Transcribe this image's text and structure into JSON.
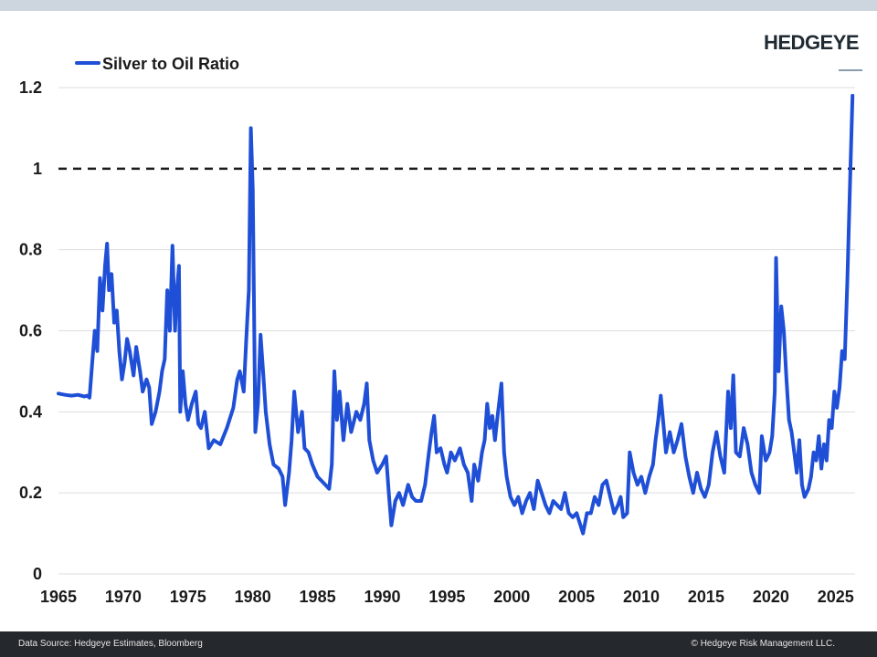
{
  "brand": {
    "logo_text": "HEDGEYE"
  },
  "footer": {
    "source": "Data Source: Hedgeye Estimates, Bloomberg",
    "copyright": "© Hedgeye Risk Management LLC."
  },
  "colors": {
    "series": "#1f4fd6",
    "reference": "#1a1a1a",
    "grid": "#dddddd",
    "top_bar": "#cdd6de",
    "footer_bg": "#25282c"
  },
  "chart_data": {
    "type": "line",
    "title": "",
    "xlabel": "",
    "ylabel": "",
    "xlim": [
      1965,
      2026.5
    ],
    "ylim": [
      0,
      1.2
    ],
    "x_ticks": [
      1965,
      1970,
      1975,
      1980,
      1985,
      1990,
      1995,
      2000,
      2005,
      2010,
      2015,
      2020,
      2025
    ],
    "y_ticks": [
      0,
      0.2,
      0.4,
      0.6,
      0.8,
      1,
      1.2
    ],
    "y_tick_labels": [
      "0",
      "0.2",
      "0.4",
      "0.6",
      "0.8",
      "1",
      "1.2"
    ],
    "grid": "horizontal",
    "legend": {
      "position": "top-left"
    },
    "reference_line": {
      "y": 1,
      "style": "dashed"
    },
    "series": [
      {
        "name": "Silver to Oil Ratio",
        "points": [
          [
            1965.0,
            0.445
          ],
          [
            1965.5,
            0.442
          ],
          [
            1966.0,
            0.44
          ],
          [
            1966.5,
            0.442
          ],
          [
            1967.0,
            0.438
          ],
          [
            1967.2,
            0.44
          ],
          [
            1967.4,
            0.435
          ],
          [
            1967.6,
            0.52
          ],
          [
            1967.8,
            0.6
          ],
          [
            1968.0,
            0.55
          ],
          [
            1968.2,
            0.73
          ],
          [
            1968.4,
            0.65
          ],
          [
            1968.6,
            0.76
          ],
          [
            1968.75,
            0.815
          ],
          [
            1968.9,
            0.7
          ],
          [
            1969.1,
            0.74
          ],
          [
            1969.3,
            0.62
          ],
          [
            1969.5,
            0.65
          ],
          [
            1969.7,
            0.55
          ],
          [
            1969.9,
            0.48
          ],
          [
            1970.1,
            0.52
          ],
          [
            1970.3,
            0.58
          ],
          [
            1970.5,
            0.55
          ],
          [
            1970.8,
            0.49
          ],
          [
            1971.0,
            0.56
          ],
          [
            1971.3,
            0.5
          ],
          [
            1971.5,
            0.45
          ],
          [
            1971.8,
            0.48
          ],
          [
            1972.0,
            0.46
          ],
          [
            1972.2,
            0.37
          ],
          [
            1972.5,
            0.4
          ],
          [
            1972.8,
            0.45
          ],
          [
            1973.0,
            0.5
          ],
          [
            1973.2,
            0.53
          ],
          [
            1973.4,
            0.7
          ],
          [
            1973.6,
            0.6
          ],
          [
            1973.8,
            0.81
          ],
          [
            1974.0,
            0.6
          ],
          [
            1974.15,
            0.7
          ],
          [
            1974.3,
            0.76
          ],
          [
            1974.4,
            0.4
          ],
          [
            1974.6,
            0.5
          ],
          [
            1974.8,
            0.42
          ],
          [
            1975.0,
            0.38
          ],
          [
            1975.3,
            0.42
          ],
          [
            1975.6,
            0.45
          ],
          [
            1975.8,
            0.37
          ],
          [
            1976.0,
            0.36
          ],
          [
            1976.3,
            0.4
          ],
          [
            1976.6,
            0.31
          ],
          [
            1977.0,
            0.33
          ],
          [
            1977.5,
            0.32
          ],
          [
            1978.0,
            0.36
          ],
          [
            1978.5,
            0.41
          ],
          [
            1978.8,
            0.48
          ],
          [
            1979.0,
            0.5
          ],
          [
            1979.3,
            0.45
          ],
          [
            1979.5,
            0.58
          ],
          [
            1979.7,
            0.7
          ],
          [
            1979.85,
            1.1
          ],
          [
            1980.0,
            0.95
          ],
          [
            1980.2,
            0.35
          ],
          [
            1980.4,
            0.42
          ],
          [
            1980.6,
            0.59
          ],
          [
            1980.8,
            0.5
          ],
          [
            1981.0,
            0.4
          ],
          [
            1981.3,
            0.32
          ],
          [
            1981.6,
            0.27
          ],
          [
            1982.0,
            0.26
          ],
          [
            1982.3,
            0.24
          ],
          [
            1982.5,
            0.17
          ],
          [
            1982.8,
            0.25
          ],
          [
            1983.0,
            0.33
          ],
          [
            1983.2,
            0.45
          ],
          [
            1983.5,
            0.35
          ],
          [
            1983.8,
            0.4
          ],
          [
            1984.0,
            0.31
          ],
          [
            1984.3,
            0.3
          ],
          [
            1984.6,
            0.27
          ],
          [
            1985.0,
            0.24
          ],
          [
            1985.3,
            0.23
          ],
          [
            1985.6,
            0.22
          ],
          [
            1985.9,
            0.21
          ],
          [
            1986.1,
            0.27
          ],
          [
            1986.3,
            0.5
          ],
          [
            1986.5,
            0.38
          ],
          [
            1986.7,
            0.45
          ],
          [
            1986.9,
            0.37
          ],
          [
            1987.0,
            0.33
          ],
          [
            1987.3,
            0.42
          ],
          [
            1987.6,
            0.35
          ],
          [
            1988.0,
            0.4
          ],
          [
            1988.3,
            0.38
          ],
          [
            1988.6,
            0.42
          ],
          [
            1988.8,
            0.47
          ],
          [
            1989.0,
            0.33
          ],
          [
            1989.3,
            0.28
          ],
          [
            1989.6,
            0.25
          ],
          [
            1990.0,
            0.27
          ],
          [
            1990.3,
            0.29
          ],
          [
            1990.5,
            0.2
          ],
          [
            1990.7,
            0.12
          ],
          [
            1991.0,
            0.18
          ],
          [
            1991.3,
            0.2
          ],
          [
            1991.6,
            0.17
          ],
          [
            1992.0,
            0.22
          ],
          [
            1992.3,
            0.19
          ],
          [
            1992.6,
            0.18
          ],
          [
            1993.0,
            0.18
          ],
          [
            1993.3,
            0.22
          ],
          [
            1993.6,
            0.3
          ],
          [
            1993.8,
            0.35
          ],
          [
            1994.0,
            0.39
          ],
          [
            1994.2,
            0.3
          ],
          [
            1994.5,
            0.31
          ],
          [
            1994.8,
            0.27
          ],
          [
            1995.0,
            0.25
          ],
          [
            1995.3,
            0.3
          ],
          [
            1995.6,
            0.28
          ],
          [
            1996.0,
            0.31
          ],
          [
            1996.3,
            0.27
          ],
          [
            1996.6,
            0.25
          ],
          [
            1996.9,
            0.18
          ],
          [
            1997.1,
            0.27
          ],
          [
            1997.4,
            0.23
          ],
          [
            1997.7,
            0.3
          ],
          [
            1997.9,
            0.33
          ],
          [
            1998.1,
            0.42
          ],
          [
            1998.3,
            0.36
          ],
          [
            1998.5,
            0.39
          ],
          [
            1998.7,
            0.33
          ],
          [
            1998.9,
            0.39
          ],
          [
            1999.2,
            0.47
          ],
          [
            1999.4,
            0.3
          ],
          [
            1999.6,
            0.24
          ],
          [
            1999.9,
            0.19
          ],
          [
            2000.2,
            0.17
          ],
          [
            2000.5,
            0.19
          ],
          [
            2000.8,
            0.15
          ],
          [
            2001.1,
            0.18
          ],
          [
            2001.4,
            0.2
          ],
          [
            2001.7,
            0.16
          ],
          [
            2002.0,
            0.23
          ],
          [
            2002.3,
            0.2
          ],
          [
            2002.6,
            0.17
          ],
          [
            2002.9,
            0.15
          ],
          [
            2003.2,
            0.18
          ],
          [
            2003.5,
            0.17
          ],
          [
            2003.8,
            0.16
          ],
          [
            2004.1,
            0.2
          ],
          [
            2004.4,
            0.15
          ],
          [
            2004.7,
            0.14
          ],
          [
            2005.0,
            0.15
          ],
          [
            2005.3,
            0.12
          ],
          [
            2005.5,
            0.1
          ],
          [
            2005.8,
            0.15
          ],
          [
            2006.1,
            0.15
          ],
          [
            2006.4,
            0.19
          ],
          [
            2006.7,
            0.17
          ],
          [
            2007.0,
            0.22
          ],
          [
            2007.3,
            0.23
          ],
          [
            2007.6,
            0.19
          ],
          [
            2007.9,
            0.15
          ],
          [
            2008.2,
            0.17
          ],
          [
            2008.4,
            0.19
          ],
          [
            2008.6,
            0.14
          ],
          [
            2008.9,
            0.15
          ],
          [
            2009.1,
            0.3
          ],
          [
            2009.4,
            0.25
          ],
          [
            2009.7,
            0.22
          ],
          [
            2010.0,
            0.24
          ],
          [
            2010.3,
            0.2
          ],
          [
            2010.6,
            0.24
          ],
          [
            2010.9,
            0.27
          ],
          [
            2011.1,
            0.33
          ],
          [
            2011.3,
            0.38
          ],
          [
            2011.5,
            0.44
          ],
          [
            2011.7,
            0.37
          ],
          [
            2011.9,
            0.3
          ],
          [
            2012.2,
            0.35
          ],
          [
            2012.5,
            0.3
          ],
          [
            2012.8,
            0.33
          ],
          [
            2013.1,
            0.37
          ],
          [
            2013.4,
            0.29
          ],
          [
            2013.7,
            0.24
          ],
          [
            2014.0,
            0.2
          ],
          [
            2014.3,
            0.25
          ],
          [
            2014.6,
            0.21
          ],
          [
            2014.9,
            0.19
          ],
          [
            2015.2,
            0.22
          ],
          [
            2015.5,
            0.3
          ],
          [
            2015.8,
            0.35
          ],
          [
            2016.1,
            0.29
          ],
          [
            2016.4,
            0.25
          ],
          [
            2016.7,
            0.45
          ],
          [
            2016.9,
            0.36
          ],
          [
            2017.1,
            0.49
          ],
          [
            2017.3,
            0.3
          ],
          [
            2017.6,
            0.29
          ],
          [
            2017.9,
            0.36
          ],
          [
            2018.2,
            0.32
          ],
          [
            2018.5,
            0.25
          ],
          [
            2018.8,
            0.22
          ],
          [
            2019.1,
            0.2
          ],
          [
            2019.3,
            0.34
          ],
          [
            2019.6,
            0.28
          ],
          [
            2019.9,
            0.3
          ],
          [
            2020.1,
            0.34
          ],
          [
            2020.3,
            0.45
          ],
          [
            2020.4,
            0.78
          ],
          [
            2020.6,
            0.5
          ],
          [
            2020.8,
            0.66
          ],
          [
            2021.0,
            0.6
          ],
          [
            2021.2,
            0.48
          ],
          [
            2021.4,
            0.38
          ],
          [
            2021.6,
            0.35
          ],
          [
            2021.8,
            0.3
          ],
          [
            2022.0,
            0.25
          ],
          [
            2022.2,
            0.33
          ],
          [
            2022.4,
            0.22
          ],
          [
            2022.6,
            0.19
          ],
          [
            2022.9,
            0.21
          ],
          [
            2023.1,
            0.24
          ],
          [
            2023.3,
            0.3
          ],
          [
            2023.5,
            0.28
          ],
          [
            2023.7,
            0.34
          ],
          [
            2023.9,
            0.26
          ],
          [
            2024.1,
            0.32
          ],
          [
            2024.3,
            0.28
          ],
          [
            2024.5,
            0.38
          ],
          [
            2024.7,
            0.36
          ],
          [
            2024.9,
            0.45
          ],
          [
            2025.1,
            0.41
          ],
          [
            2025.3,
            0.46
          ],
          [
            2025.5,
            0.55
          ],
          [
            2025.7,
            0.53
          ],
          [
            2025.9,
            0.72
          ],
          [
            2026.1,
            0.95
          ],
          [
            2026.3,
            1.18
          ]
        ]
      }
    ]
  }
}
